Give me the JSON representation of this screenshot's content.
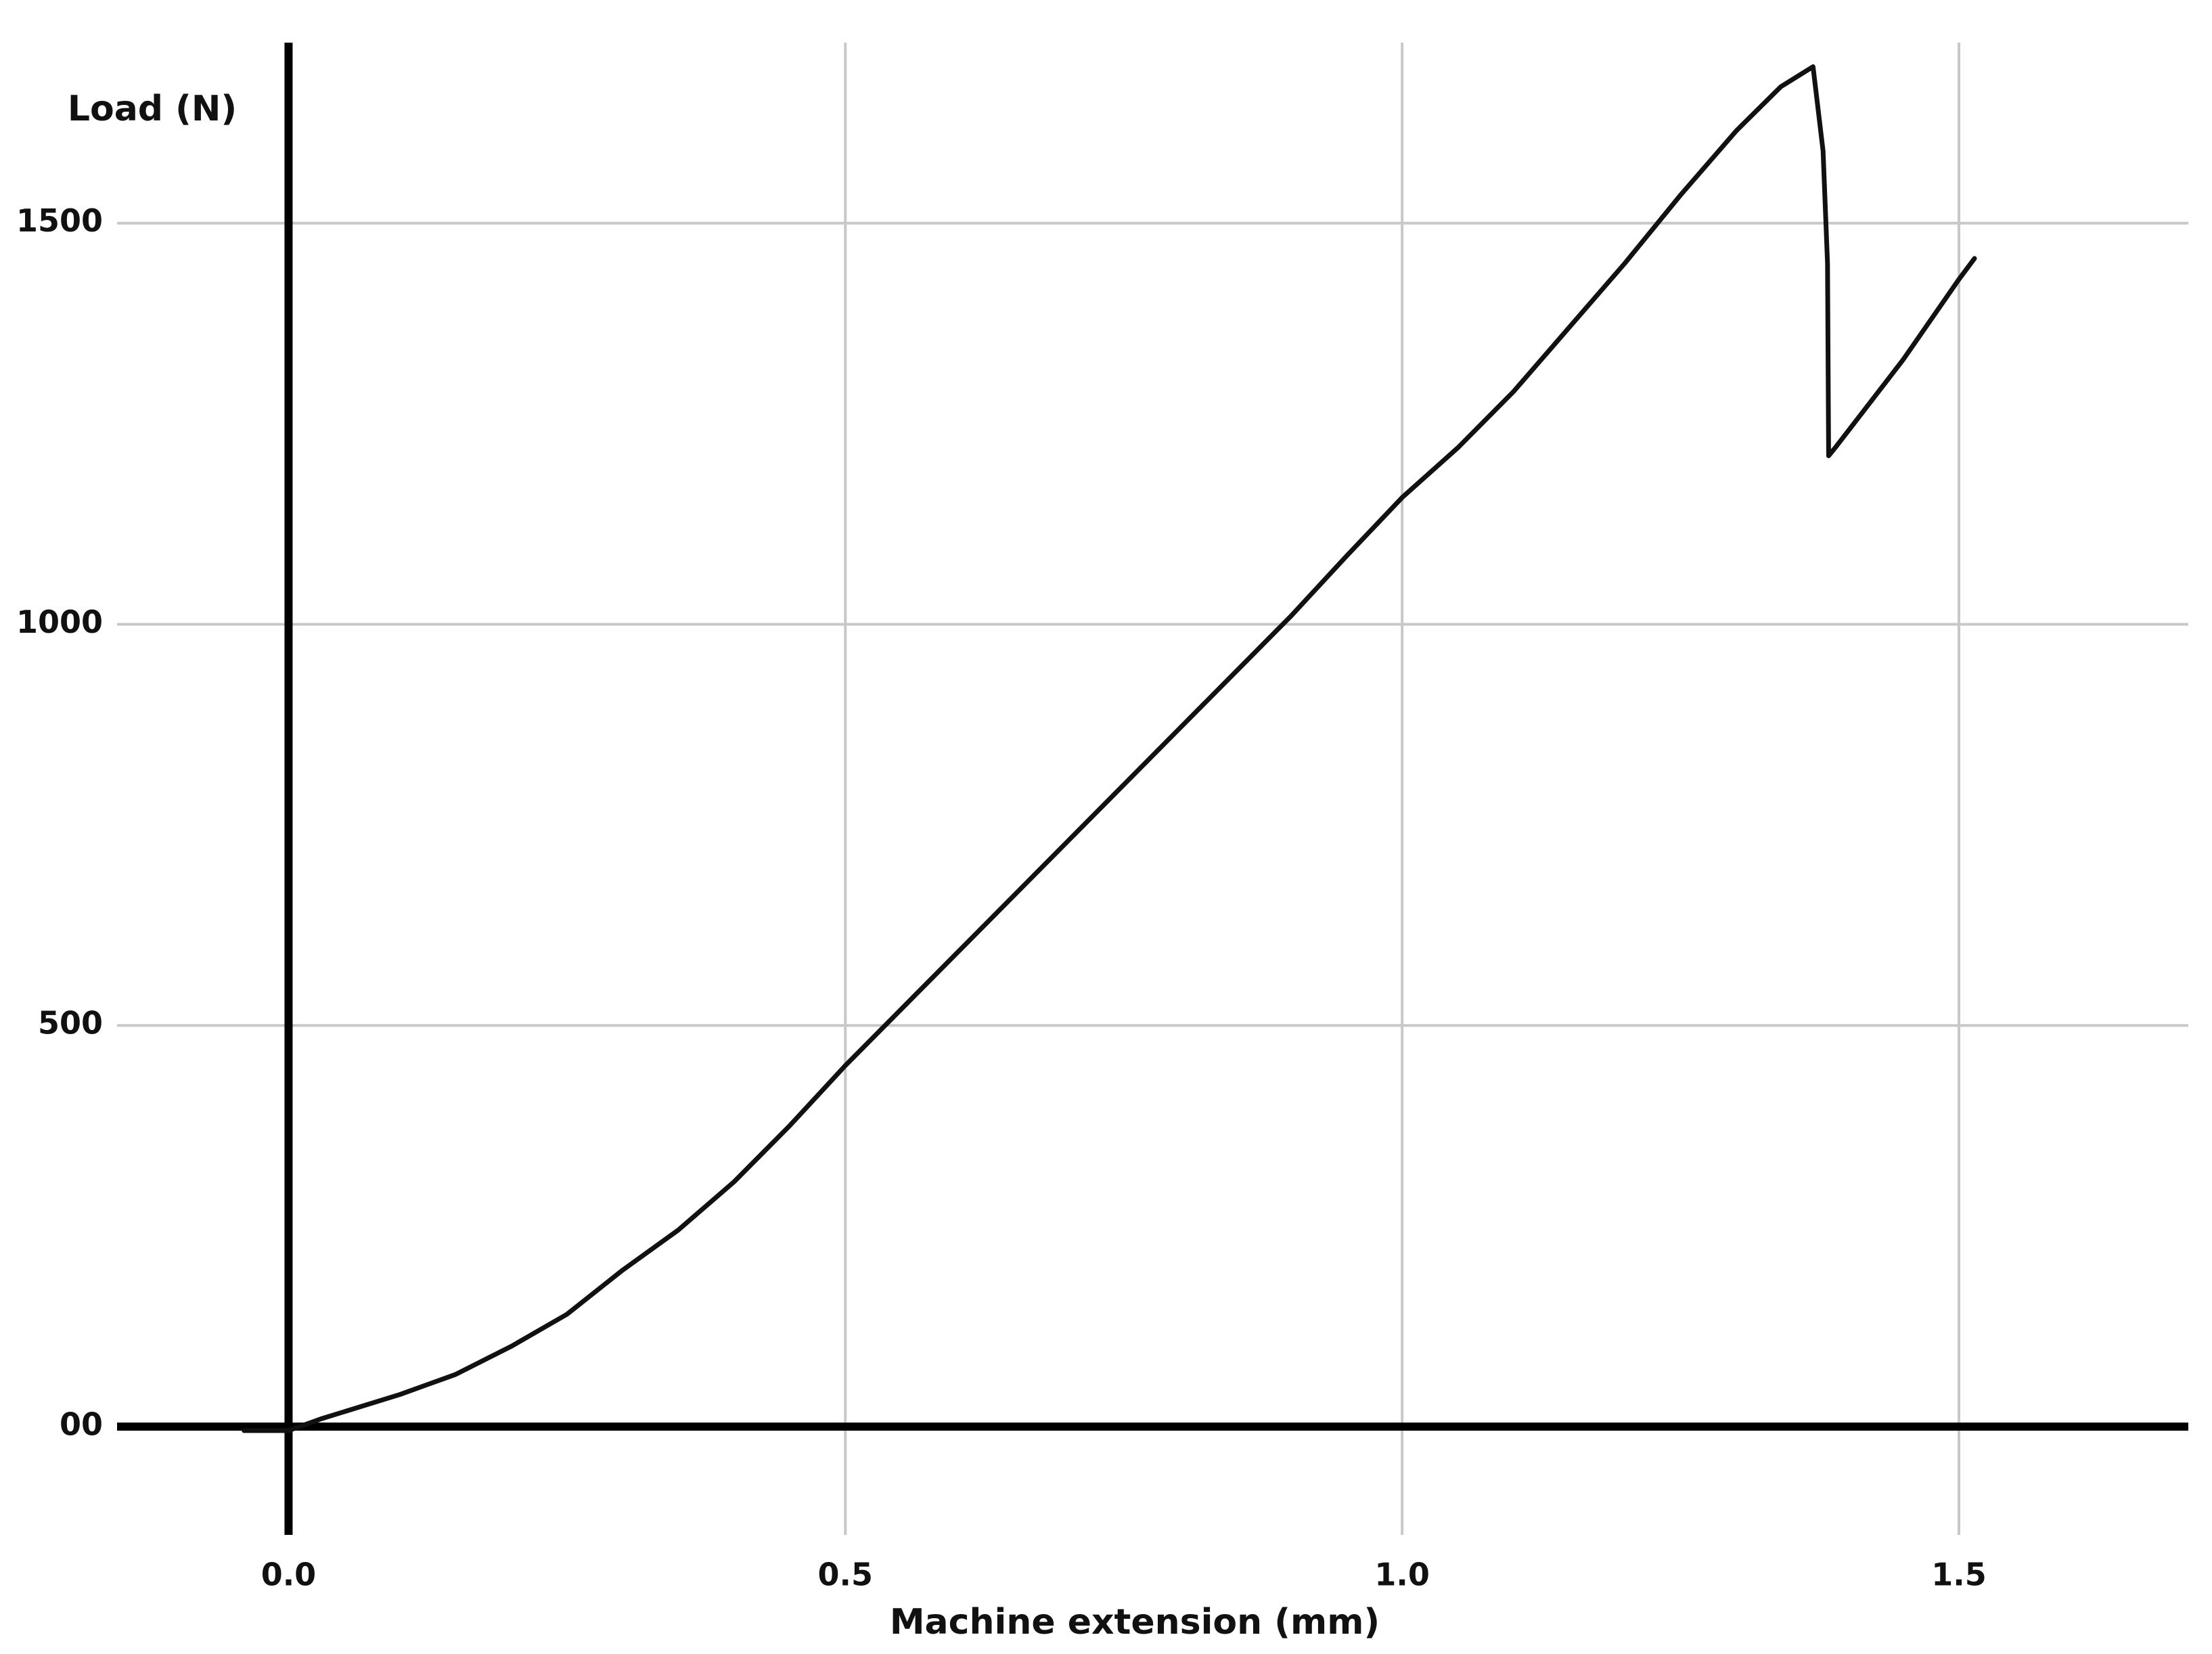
{
  "chart_data": {
    "type": "line",
    "x_label": "Machine extension (mm)",
    "y_label": "Load (N)",
    "x": [
      -0.04,
      0,
      0.03,
      0.1,
      0.15,
      0.2,
      0.25,
      0.3,
      0.35,
      0.4,
      0.45,
      0.5,
      0.55,
      0.6,
      0.65,
      0.7,
      0.75,
      0.8,
      0.85,
      0.9,
      0.95,
      1.0,
      1.05,
      1.1,
      1.15,
      1.2,
      1.25,
      1.3,
      1.34,
      1.369,
      1.378,
      1.382,
      1.383,
      1.39,
      1.45,
      1.5,
      1.514
    ],
    "series": [
      {
        "color": "#111111",
        "values": [
          -5,
          -5,
          10,
          40,
          65,
          100,
          140,
          195,
          245,
          305,
          375,
          450,
          520,
          590,
          660,
          730,
          800,
          870,
          940,
          1010,
          1085,
          1158,
          1220,
          1290,
          1370,
          1450,
          1535,
          1615,
          1670,
          1695,
          1590,
          1450,
          1210,
          1222,
          1330,
          1430,
          1456
        ]
      }
    ],
    "xlim": [
      -0.154,
      1.706
    ],
    "ylim": [
      -135,
      1725
    ],
    "xticks": [
      {
        "value": 0,
        "label": "0.0"
      },
      {
        "value": 0.5,
        "label": "0.5"
      },
      {
        "value": 1,
        "label": "1.0"
      },
      {
        "value": 1.5,
        "label": "1.5"
      }
    ],
    "yticks": [
      {
        "value": 0,
        "label": "00"
      },
      500,
      1000,
      1500
    ],
    "grid": true
  }
}
